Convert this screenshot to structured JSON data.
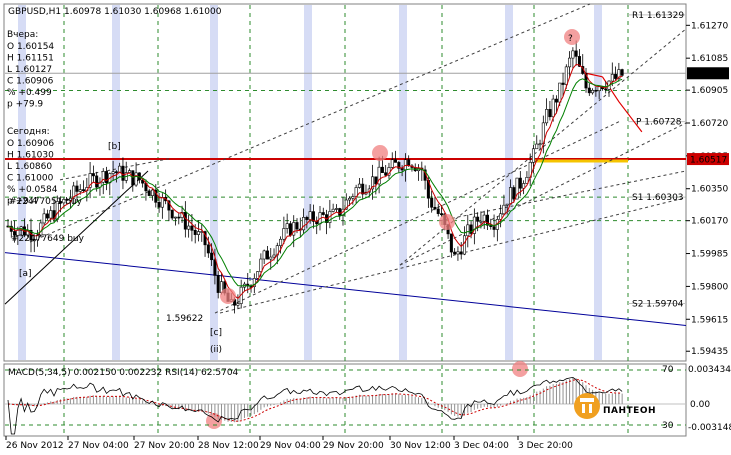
{
  "header": {
    "symbol_line": "GBPUSD,H1  1.60978 1.61030 1.60968 1.61000"
  },
  "info_box": {
    "yesterday_title": "Вчера:",
    "yesterday_lines": [
      "O 1.60154",
      "H 1.61151",
      "L 1.60127",
      "C 1.60906",
      "% +0.499",
      "p +79.9"
    ],
    "today_title": "Сегодня:",
    "today_lines": [
      "O 1.60906",
      "H 1.61030",
      "L 1.60860",
      "C 1.61000",
      "% +0.0584",
      "p +9.4"
    ],
    "orders": [
      "#22477051 buy",
      "#22477649 buy"
    ]
  },
  "price_labels": {
    "last_price": "1.61000",
    "red_level": "1.60517"
  },
  "level_labels": [
    "R1 1.61329",
    "P 1.60728",
    "S1 1.60303",
    "S2 1.59704",
    "1.59622"
  ],
  "wave_labels": [
    "[b]",
    "[a]",
    "[c]",
    "(ii)"
  ],
  "question_mark": "?",
  "macd_label": "MACD(5,34,5) 0.002150 0.002232  RSI(14) 62.5704",
  "logo_text": "ПАНТЕОН",
  "colors": {
    "bull_candle": "#ffffff",
    "bear_candle": "#000000",
    "ma_fast": "#cc0000",
    "ma_slow": "#008000",
    "resistance": "#cc0000",
    "channel_blue": "#000099",
    "grid": "#2e8b2e",
    "highlight_band": "#d6dcf5",
    "circle_marker": "#f08080"
  },
  "chart_data": {
    "type": "candlestick",
    "symbol": "GBPUSD",
    "timeframe": "H1",
    "y_ticks": [
      "1.61270",
      "1.61085",
      "1.60905",
      "1.60720",
      "1.60535",
      "1.60350",
      "1.60170",
      "1.59985",
      "1.59800",
      "1.59615",
      "1.59435"
    ],
    "ylim": [
      1.5938,
      1.6139
    ],
    "x_ticks": [
      "26 Nov 2012",
      "27 Nov 04:00",
      "27 Nov 20:00",
      "28 Nov 12:00",
      "29 Nov 04:00",
      "29 Nov 20:00",
      "30 Nov 12:00",
      "3 Dec 04:00",
      "3 Dec 20:00"
    ],
    "close_path": [
      [
        0,
        1.6014
      ],
      [
        8,
        1.601
      ],
      [
        16,
        1.6026
      ],
      [
        24,
        1.6038
      ],
      [
        32,
        1.6045
      ],
      [
        40,
        1.604
      ],
      [
        48,
        1.6026
      ],
      [
        54,
        1.6016
      ],
      [
        60,
        1.6004
      ],
      [
        64,
        1.5981
      ],
      [
        68,
        1.5968
      ],
      [
        72,
        1.5978
      ],
      [
        78,
        1.5996
      ],
      [
        86,
        1.6013
      ],
      [
        94,
        1.6019
      ],
      [
        100,
        1.602
      ],
      [
        106,
        1.6035
      ],
      [
        112,
        1.6041
      ],
      [
        118,
        1.6048
      ],
      [
        122,
        1.6052
      ],
      [
        126,
        1.6046
      ],
      [
        128,
        1.603
      ],
      [
        132,
        1.6018
      ],
      [
        136,
        1.5996
      ],
      [
        140,
        1.601
      ],
      [
        144,
        1.602
      ],
      [
        148,
        1.6017
      ],
      [
        152,
        1.603
      ],
      [
        156,
        1.6038
      ],
      [
        160,
        1.6053
      ],
      [
        164,
        1.6075
      ],
      [
        168,
        1.609
      ],
      [
        172,
        1.6112
      ],
      [
        176,
        1.6092
      ],
      [
        180,
        1.6094
      ],
      [
        184,
        1.6096
      ],
      [
        188,
        1.61
      ]
    ],
    "support_resistance": {
      "R1": 1.61329,
      "P": 1.60728,
      "S1": 1.60303,
      "S2": 1.59704,
      "red_level": 1.60517,
      "last": 1.61,
      "low_marker": 1.59622
    },
    "indicators": {
      "macd": {
        "fast": 5,
        "slow": 34,
        "signal": 5,
        "main": 0.00215,
        "signal_value": 0.002232
      },
      "rsi": {
        "period": 14,
        "value": 62.5704
      },
      "sub_axis_ticks": [
        "0.0034344",
        "0.00",
        "-0.003148",
        "70",
        "30"
      ]
    }
  }
}
